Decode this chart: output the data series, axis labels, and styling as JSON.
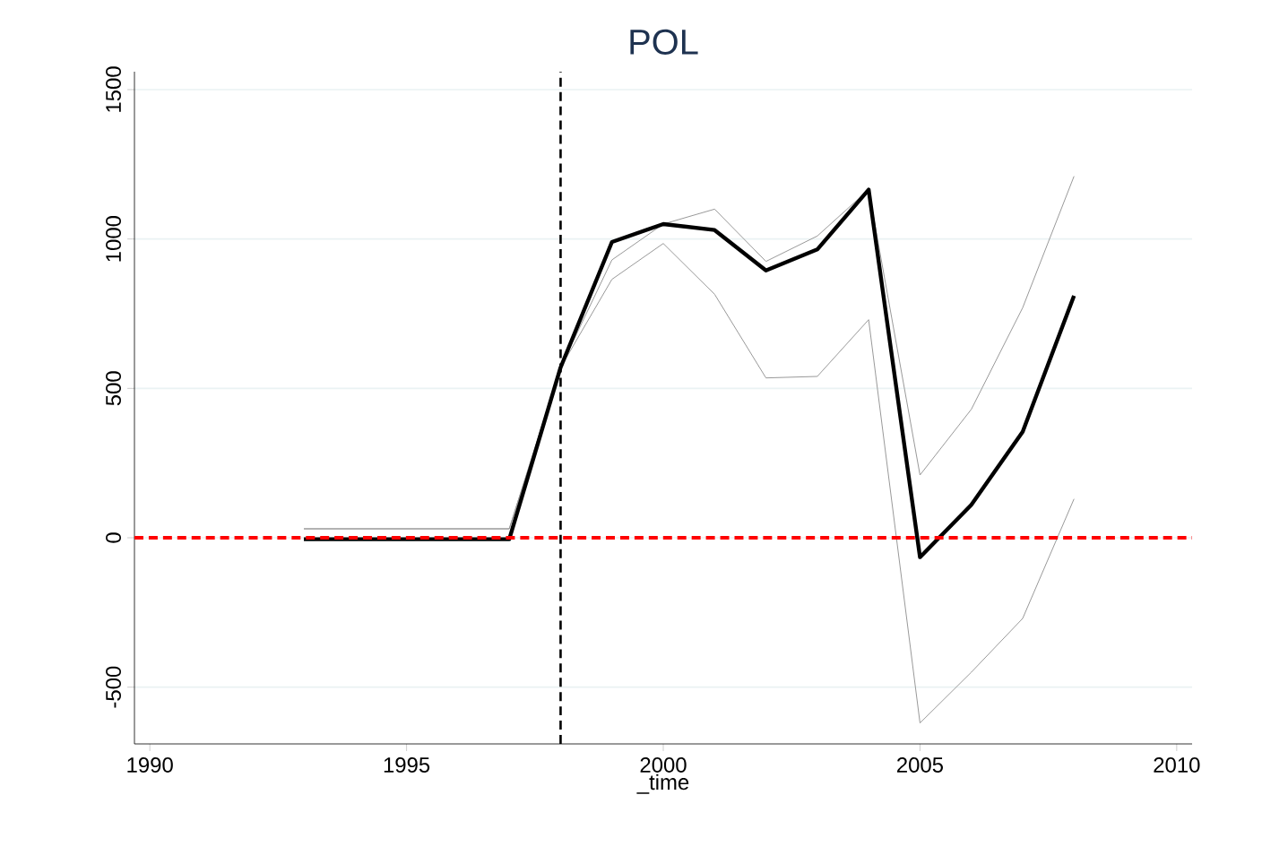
{
  "chart_data": {
    "type": "line",
    "title": "POL",
    "xlabel": "_time",
    "x": [
      1993,
      1994,
      1995,
      1996,
      1997,
      1998,
      1999,
      2000,
      2001,
      2002,
      2003,
      2004,
      2005,
      2006,
      2007,
      2008
    ],
    "series": [
      {
        "color": "#999999",
        "values": [
          30,
          30,
          30,
          30,
          30,
          570,
          930,
          1050,
          1100,
          925,
          1010,
          1165,
          210,
          430,
          770,
          1210
        ]
      },
      {
        "color": "#999999",
        "values": [
          30,
          30,
          30,
          30,
          30,
          570,
          865,
          985,
          815,
          535,
          540,
          730,
          -620,
          -450,
          -270,
          130
        ]
      },
      {
        "color": "#000000",
        "values": [
          -5,
          -5,
          -5,
          -5,
          -5,
          570,
          990,
          1050,
          1030,
          895,
          965,
          1165,
          -65,
          110,
          355,
          810
        ]
      }
    ],
    "xlim": [
      1989.7,
      2010.3
    ],
    "ylim": [
      -690,
      1560
    ],
    "xticks": [
      1990,
      1995,
      2000,
      2005,
      2010
    ],
    "yticks": [
      -500,
      0,
      500,
      1000,
      1500
    ],
    "grid": "y",
    "marker": "none",
    "line_style": "solid",
    "ref_lines": [
      {
        "axis": "x",
        "value": 1998,
        "color": "#000000",
        "line_style": "dashed"
      },
      {
        "axis": "y",
        "value": 0,
        "color": "#ff0000",
        "line_style": "dashed"
      }
    ]
  }
}
